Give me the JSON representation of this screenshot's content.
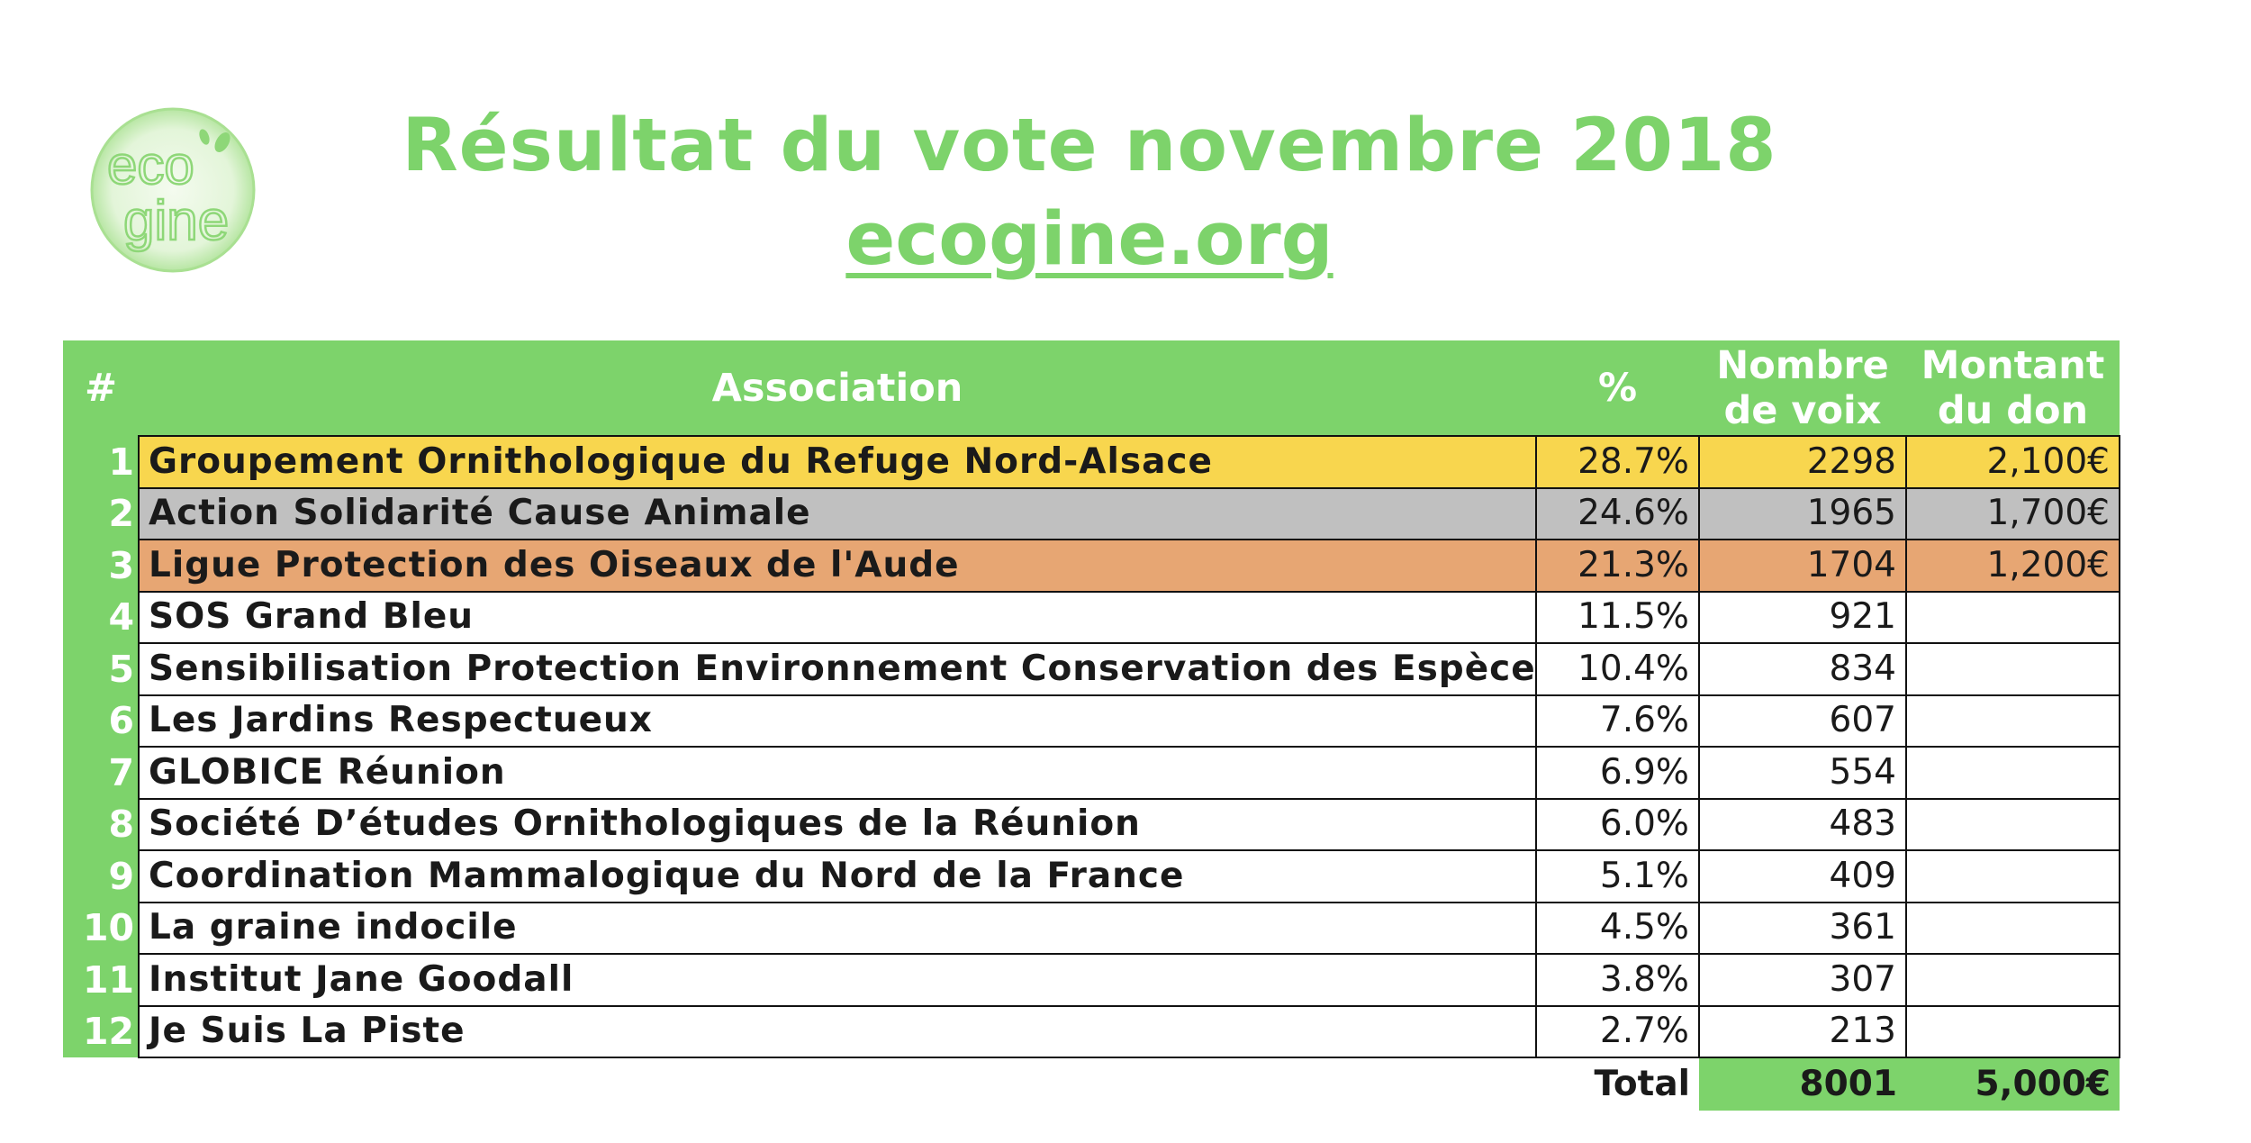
{
  "logo": {
    "line1": "eco",
    "line2": "gine"
  },
  "header": {
    "title": "Résultat du vote novembre 2018",
    "subtitle": "ecogine.org"
  },
  "colors": {
    "green": "#7dd36b",
    "gold": "#f8d64e",
    "silver": "#c0c0c0",
    "bronze": "#e7a673"
  },
  "table": {
    "columns": {
      "num": "#",
      "association": "Association",
      "pct": "%",
      "votes_line1": "Nombre",
      "votes_line2": "de voix",
      "amount_line1": "Montant",
      "amount_line2": "du don"
    },
    "rows": [
      {
        "num": "1",
        "name": "Groupement Ornithologique du Refuge Nord-Alsace",
        "pct": "28.7%",
        "votes": "2298",
        "amount": "2,100€"
      },
      {
        "num": "2",
        "name": "Action Solidarité Cause Animale",
        "pct": "24.6%",
        "votes": "1965",
        "amount": "1,700€"
      },
      {
        "num": "3",
        "name": "Ligue Protection des Oiseaux de l'Aude",
        "pct": "21.3%",
        "votes": "1704",
        "amount": "1,200€"
      },
      {
        "num": "4",
        "name": "SOS Grand Bleu",
        "pct": "11.5%",
        "votes": "921",
        "amount": ""
      },
      {
        "num": "5",
        "name": "Sensibilisation Protection Environnement Conservation des Espèces",
        "pct": "10.4%",
        "votes": "834",
        "amount": ""
      },
      {
        "num": "6",
        "name": "Les Jardins Respectueux",
        "pct": "7.6%",
        "votes": "607",
        "amount": ""
      },
      {
        "num": "7",
        "name": "GLOBICE Réunion",
        "pct": "6.9%",
        "votes": "554",
        "amount": ""
      },
      {
        "num": "8",
        "name": "Société D’études Ornithologiques de la Réunion",
        "pct": "6.0%",
        "votes": "483",
        "amount": ""
      },
      {
        "num": "9",
        "name": "Coordination Mammalogique du Nord de la France",
        "pct": "5.1%",
        "votes": "409",
        "amount": ""
      },
      {
        "num": "10",
        "name": "La graine indocile",
        "pct": "4.5%",
        "votes": "361",
        "amount": ""
      },
      {
        "num": "11",
        "name": "Institut Jane Goodall",
        "pct": "3.8%",
        "votes": "307",
        "amount": ""
      },
      {
        "num": "12",
        "name": "Je Suis La Piste",
        "pct": "2.7%",
        "votes": "213",
        "amount": ""
      }
    ],
    "total": {
      "label": "Total",
      "votes": "8001",
      "amount": "5,000€"
    }
  }
}
